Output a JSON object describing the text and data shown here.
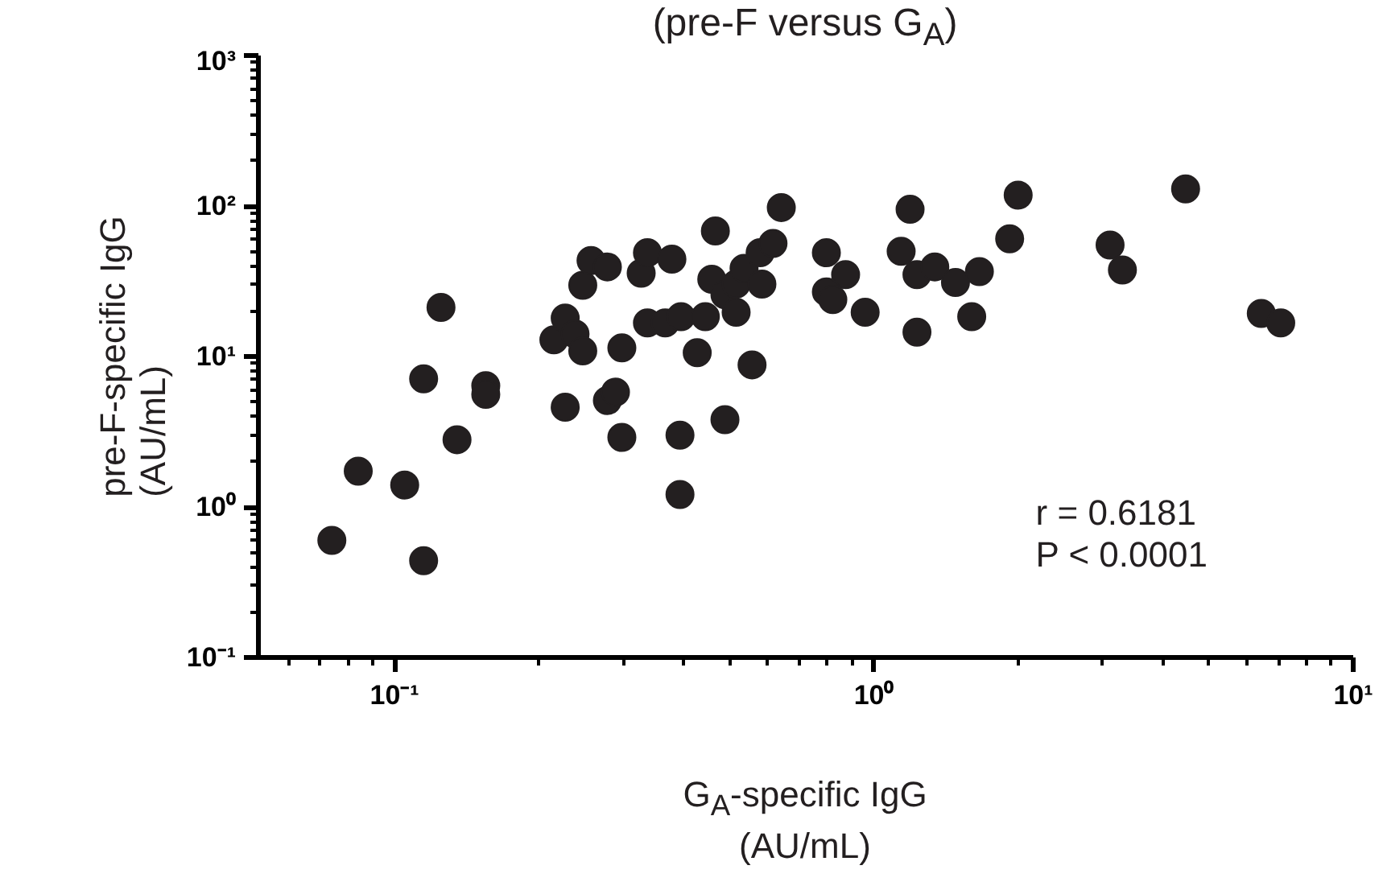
{
  "chart_data": {
    "type": "scatter",
    "title": "(pre-F versus G$_{A}$)",
    "xlabel": "G$_{A}$-specific IgG\n(AU/mL)",
    "ylabel": "pre-F-specific IgG\n(AU/mL)",
    "log": "xy",
    "grid": false,
    "marker": "circle",
    "xlim": [
      0.052,
      10
    ],
    "ylim": [
      0.1,
      1000
    ],
    "xticks": [
      {
        "value": 0.1,
        "label": "10⁻¹"
      },
      {
        "value": 1,
        "label": "10⁰"
      },
      {
        "value": 10,
        "label": "10¹"
      }
    ],
    "yticks": [
      {
        "value": 0.1,
        "label": "10⁻¹"
      },
      {
        "value": 1,
        "label": "10⁰"
      },
      {
        "value": 10,
        "label": "10¹"
      },
      {
        "value": 100,
        "label": "10²"
      },
      {
        "value": 1000,
        "label": "10³"
      }
    ],
    "annotations": [
      "r = 0.6181",
      "P < 0.0001"
    ],
    "series": [
      {
        "color": "#231f20",
        "x": [
          0.074,
          0.084,
          0.105,
          0.115,
          0.115,
          0.125,
          0.135,
          0.155,
          0.155,
          0.227,
          0.298,
          0.278,
          0.289,
          0.298,
          0.215,
          0.227,
          0.238,
          0.247,
          0.247,
          0.257,
          0.278,
          0.327,
          0.337,
          0.379,
          0.337,
          0.367,
          0.394,
          0.394,
          0.396,
          0.445,
          0.428,
          0.467,
          0.459,
          0.489,
          0.516,
          0.536,
          0.516,
          0.584,
          0.579,
          0.616,
          0.641,
          0.557,
          0.489,
          0.796,
          0.873,
          0.796,
          0.821,
          0.959,
          1.19,
          1.14,
          1.23,
          1.34,
          1.48,
          1.66,
          1.6,
          1.23,
          1.92,
          2.0,
          3.11,
          3.3,
          4.47,
          6.43,
          7.06
        ],
        "values": [
          0.6,
          1.73,
          1.4,
          0.44,
          7.1,
          21.2,
          2.8,
          6.4,
          5.6,
          4.6,
          2.9,
          5.1,
          5.8,
          11.4,
          12.9,
          18.0,
          14.1,
          10.9,
          29.7,
          43.4,
          39.4,
          35.8,
          48.9,
          44.4,
          16.7,
          16.7,
          3.0,
          1.21,
          18.4,
          18.4,
          10.6,
          68.2,
          32.6,
          25.7,
          30.3,
          38.5,
          19.7,
          30.3,
          48.9,
          56.4,
          97.7,
          8.8,
          3.8,
          48.9,
          35.0,
          26.9,
          23.9,
          19.7,
          95.3,
          50.0,
          35.0,
          39.4,
          31.0,
          36.7,
          18.4,
          14.5,
          60.6,
          118,
          55.1,
          37.6,
          130,
          19.3,
          16.7
        ]
      }
    ]
  }
}
